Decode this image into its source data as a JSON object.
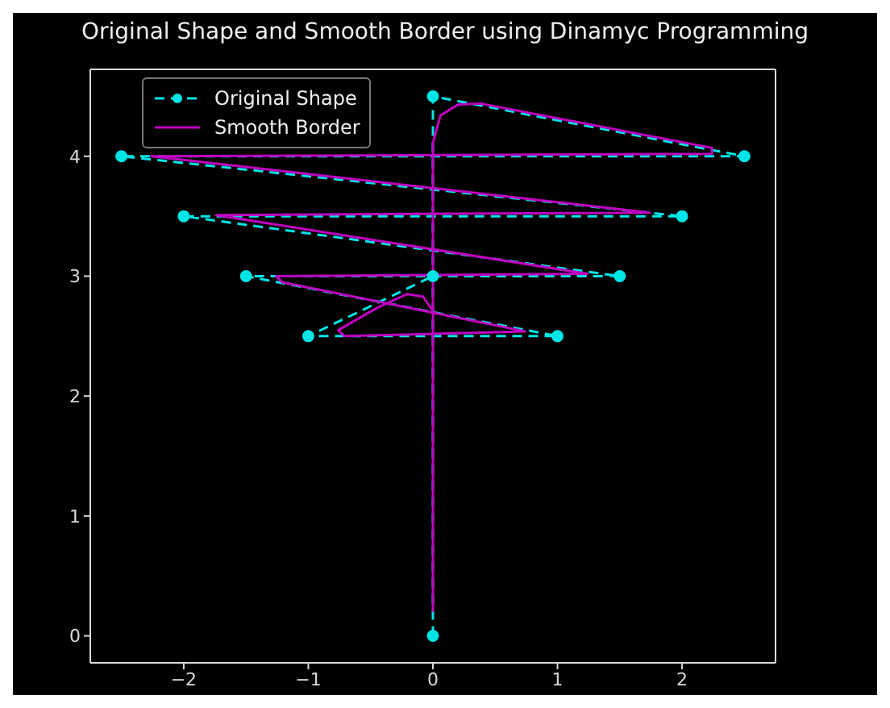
{
  "chart_data": {
    "type": "line",
    "title": "Original Shape and Smooth Border using Dinamyc Programming",
    "xlim": [
      -2.75,
      2.75
    ],
    "ylim": [
      -0.225,
      4.725
    ],
    "xticks": [
      -2,
      -1,
      0,
      1,
      2
    ],
    "yticks": [
      0,
      1,
      2,
      3,
      4
    ],
    "grid": false,
    "legend": "top left",
    "series": [
      {
        "name": "Original Shape",
        "color": "#00e5e5",
        "line_style": "dashed",
        "marker": "circle",
        "x": [
          0,
          0,
          2.5,
          -2.5,
          2,
          -2,
          1.5,
          -1.5,
          1,
          -1,
          0
        ],
        "values": [
          0,
          4.5,
          4,
          4,
          3.5,
          3.5,
          3,
          3,
          2.5,
          2.5,
          3
        ]
      },
      {
        "name": "Smooth Border",
        "color": "#c000c0",
        "line_style": "solid",
        "marker": "none",
        "x": [
          0,
          0,
          0.06,
          0.2,
          0.38,
          2.24,
          2.24,
          -2.26,
          1.74,
          -1.74,
          1.24,
          -1.26,
          -1.21,
          0.74,
          -0.71,
          -0.76,
          -0.44,
          -0.21,
          -0.08,
          0
        ],
        "values": [
          0.2,
          4.11,
          4.34,
          4.43,
          4.44,
          4.07,
          4.02,
          4,
          3.53,
          3.51,
          3.02,
          3,
          2.95,
          2.54,
          2.5,
          2.55,
          2.74,
          2.85,
          2.83,
          2.71
        ]
      }
    ]
  }
}
